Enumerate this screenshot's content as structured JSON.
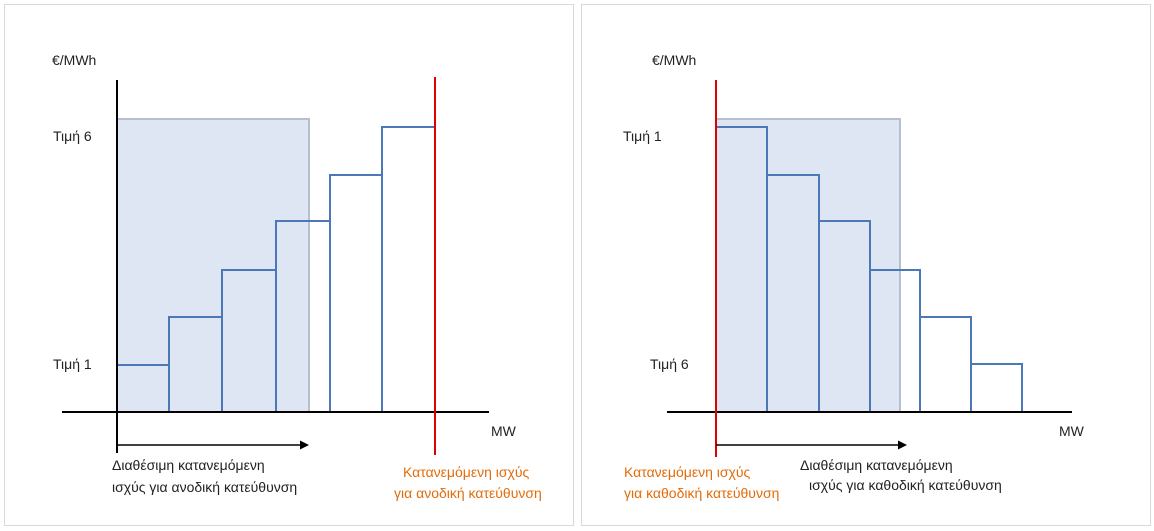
{
  "colors": {
    "available_fill": "#dae3f3",
    "available_stroke": "#b4c0d0",
    "step_line": "#4a78b8",
    "axis": "#000000",
    "allocated_line": "#e00000",
    "allocated_label": "#e36c0a"
  },
  "left": {
    "y_axis_label": "€/MWh",
    "x_axis_label": "MW",
    "price_top_label": "Τιμή 6",
    "price_bottom_label": "Τιμή 1",
    "available_label_line1": "Διαθέσιμη κατανεμόμενη",
    "available_label_line2": "ισχύς για ανοδική κατεύθυνση",
    "allocated_label_line1": "Κατανεμόμενη ισχύς",
    "allocated_label_line2": "για ανοδική κατεύθυνση",
    "steps_direction": "ascending",
    "step_count": 6
  },
  "right": {
    "y_axis_label": "€/MWh",
    "x_axis_label": "MW",
    "price_top_label": "Τιμή 1",
    "price_bottom_label": "Τιμή 6",
    "available_label_line1": "Διαθέσιμη κατανεμόμενη",
    "available_label_line2": "ισχύς για καθοδική κατεύθυνση",
    "allocated_label_line1": "Κατανεμόμενη ισχύς",
    "allocated_label_line2": "για καθοδική κατεύθυνση",
    "steps_direction": "descending",
    "step_count": 6
  }
}
